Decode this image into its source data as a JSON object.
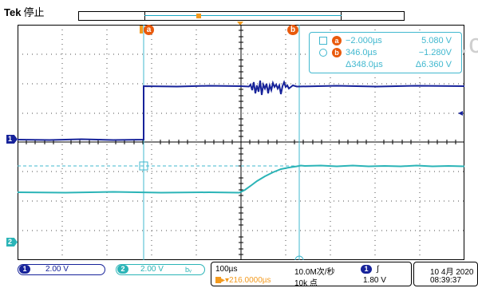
{
  "header": {
    "brand": "Tek",
    "status": "停止"
  },
  "cursors": {
    "a_label": "a",
    "b_label": "b",
    "a_time": "−2.000µs",
    "a_value": "5.080 V",
    "b_time": "346.0µs",
    "b_value": "−1.280V",
    "delta_time": "Δ348.0µs",
    "delta_value": "Δ6.360 V"
  },
  "watermark": "www.c",
  "channels": {
    "ch1": {
      "number": "1",
      "scale": "2.00 V",
      "color": "#17239a"
    },
    "ch2": {
      "number": "2",
      "scale": "2.00 V",
      "color": "#2bb4b7",
      "bw_symbol": "bᵥ"
    }
  },
  "horizontal": {
    "timebase": "100µs",
    "sample_rate": "10.0M次/秒",
    "trigger_position": "216.0000µs",
    "record_length": "10k 点"
  },
  "trigger": {
    "source": "1",
    "slope": "∫",
    "level": "1.80 V"
  },
  "datetime": {
    "date": "10 4月 2020",
    "time": "08:39:37"
  },
  "colors": {
    "ch1": "#17239a",
    "ch2": "#2bb4b7",
    "cursor": "#41b8cf",
    "trigger": "#f39a1e",
    "badge": "#e95a0c"
  }
}
